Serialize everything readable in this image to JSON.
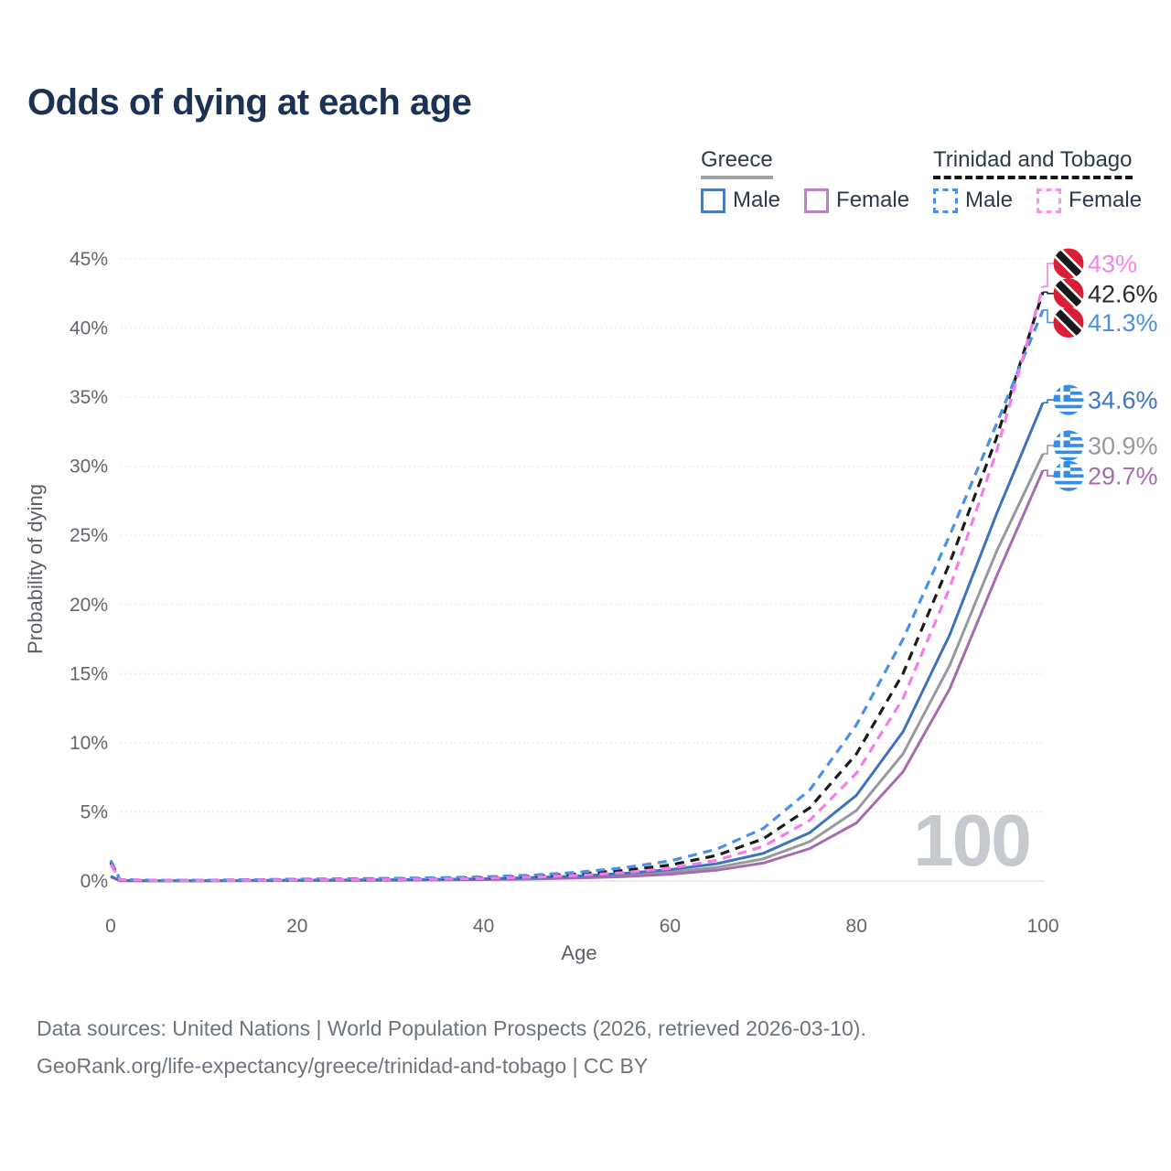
{
  "page": {
    "title": "Odds of dying at each age"
  },
  "legend": {
    "groups": [
      {
        "label": "Greece",
        "line_style": "solid",
        "underline_color": "#a0a2a6",
        "items": [
          {
            "label": "Male",
            "color": "#4a7cc2",
            "dashed": false
          },
          {
            "label": "Female",
            "color": "#bd82c4",
            "dashed": false
          }
        ]
      },
      {
        "label": "Trinidad and Tobago",
        "line_style": "dashed",
        "underline_color": "#161616",
        "items": [
          {
            "label": "Male",
            "color": "#4a90e8",
            "dashed": true
          },
          {
            "label": "Female",
            "color": "#f992ea",
            "dashed": true
          }
        ]
      }
    ]
  },
  "chart_data": {
    "type": "line",
    "title": "Odds of dying at each age",
    "xlabel": "Age",
    "ylabel": "Probability of dying",
    "xlim": [
      0,
      100
    ],
    "ylim": [
      0,
      45
    ],
    "grid": "horizontal-dotted",
    "legend_position": "top-right",
    "watermark": "100",
    "xticks": [
      0,
      20,
      40,
      60,
      80,
      100
    ],
    "xtick_labels": [
      "0",
      "20",
      "40",
      "60",
      "80",
      "100"
    ],
    "yticks": [
      0,
      5,
      10,
      15,
      20,
      25,
      30,
      35,
      40,
      45
    ],
    "ytick_labels": [
      "0%",
      "5%",
      "10%",
      "15%",
      "20%",
      "25%",
      "30%",
      "35%",
      "40%",
      "45%"
    ],
    "ages": [
      0,
      1,
      5,
      10,
      15,
      20,
      25,
      30,
      35,
      40,
      45,
      50,
      55,
      60,
      65,
      70,
      75,
      80,
      85,
      90,
      95,
      100
    ],
    "series": [
      {
        "key": "greece_total",
        "name": "Greece",
        "country": "Greece",
        "sex": "both",
        "color": "#97999e",
        "dashed": false,
        "values": [
          0.32,
          0.025,
          0.015,
          0.018,
          0.03,
          0.045,
          0.055,
          0.07,
          0.09,
          0.13,
          0.19,
          0.28,
          0.42,
          0.63,
          0.98,
          1.6,
          2.85,
          5.1,
          9.2,
          15.6,
          23.8,
          30.9
        ]
      },
      {
        "key": "greece_female",
        "name": "Greece — Female",
        "country": "Greece",
        "sex": "female",
        "color": "#a56cb0",
        "dashed": false,
        "values": [
          0.3,
          0.02,
          0.012,
          0.014,
          0.02,
          0.03,
          0.04,
          0.05,
          0.07,
          0.1,
          0.14,
          0.21,
          0.32,
          0.49,
          0.78,
          1.3,
          2.35,
          4.2,
          7.9,
          13.9,
          22.0,
          29.7
        ]
      },
      {
        "key": "greece_male",
        "name": "Greece — Male",
        "country": "Greece",
        "sex": "male",
        "color": "#3f72bd",
        "dashed": false,
        "values": [
          0.35,
          0.03,
          0.02,
          0.02,
          0.04,
          0.06,
          0.07,
          0.09,
          0.11,
          0.16,
          0.24,
          0.36,
          0.55,
          0.82,
          1.25,
          2.0,
          3.5,
          6.2,
          10.8,
          17.8,
          26.5,
          34.6
        ]
      },
      {
        "key": "tt_total",
        "name": "Trinidad and Tobago",
        "country": "Trinidad and Tobago",
        "sex": "both",
        "color": "#1b1b1b",
        "dashed": true,
        "values": [
          1.35,
          0.09,
          0.04,
          0.05,
          0.07,
          0.1,
          0.12,
          0.15,
          0.18,
          0.24,
          0.34,
          0.5,
          0.76,
          1.15,
          1.85,
          3.05,
          5.3,
          9.2,
          15.0,
          23.0,
          32.0,
          42.6
        ]
      },
      {
        "key": "tt_male",
        "name": "Trinidad and Tobago — Male",
        "country": "Trinidad and Tobago",
        "sex": "male",
        "color": "#4a90e8",
        "dashed": true,
        "values": [
          1.5,
          0.1,
          0.05,
          0.06,
          0.09,
          0.13,
          0.16,
          0.19,
          0.23,
          0.3,
          0.42,
          0.62,
          0.95,
          1.45,
          2.3,
          3.8,
          6.6,
          11.3,
          17.5,
          25.0,
          33.0,
          41.3
        ]
      },
      {
        "key": "tt_female",
        "name": "Trinidad and Tobago — Female",
        "country": "Trinidad and Tobago",
        "sex": "female",
        "color": "#f57ce8",
        "dashed": true,
        "values": [
          1.2,
          0.08,
          0.04,
          0.04,
          0.05,
          0.07,
          0.09,
          0.11,
          0.14,
          0.19,
          0.27,
          0.4,
          0.6,
          0.92,
          1.5,
          2.5,
          4.4,
          7.8,
          13.2,
          21.2,
          31.0,
          43.0
        ]
      }
    ],
    "end_labels": [
      {
        "series": "tt_female",
        "text": "43%",
        "value": 43.0,
        "label_pct": 44.67,
        "color": "#f584e8",
        "flag": "trinidad-and-tobago"
      },
      {
        "series": "tt_total",
        "text": "42.6%",
        "value": 42.6,
        "label_pct": 42.5,
        "color": "#2b2b2b",
        "flag": "trinidad-and-tobago"
      },
      {
        "series": "tt_male",
        "text": "41.3%",
        "value": 41.3,
        "label_pct": 40.4,
        "color": "#4a90e8",
        "flag": "trinidad-and-tobago"
      },
      {
        "series": "greece_male",
        "text": "34.6%",
        "value": 34.6,
        "label_pct": 34.8,
        "color": "#4375bf",
        "flag": "greece"
      },
      {
        "series": "greece_total",
        "text": "30.9%",
        "value": 30.9,
        "label_pct": 31.5,
        "color": "#97999e",
        "flag": "greece"
      },
      {
        "series": "greece_female",
        "text": "29.7%",
        "value": 29.7,
        "label_pct": 29.3,
        "color": "#a56cb0",
        "flag": "greece"
      }
    ]
  },
  "footer": {
    "line1": "Data sources: United Nations | World Population Prospects (2026, retrieved 2026-03-10).",
    "line2": "GeoRank.org/life-expectancy/greece/trinidad-and-tobago | CC BY"
  }
}
